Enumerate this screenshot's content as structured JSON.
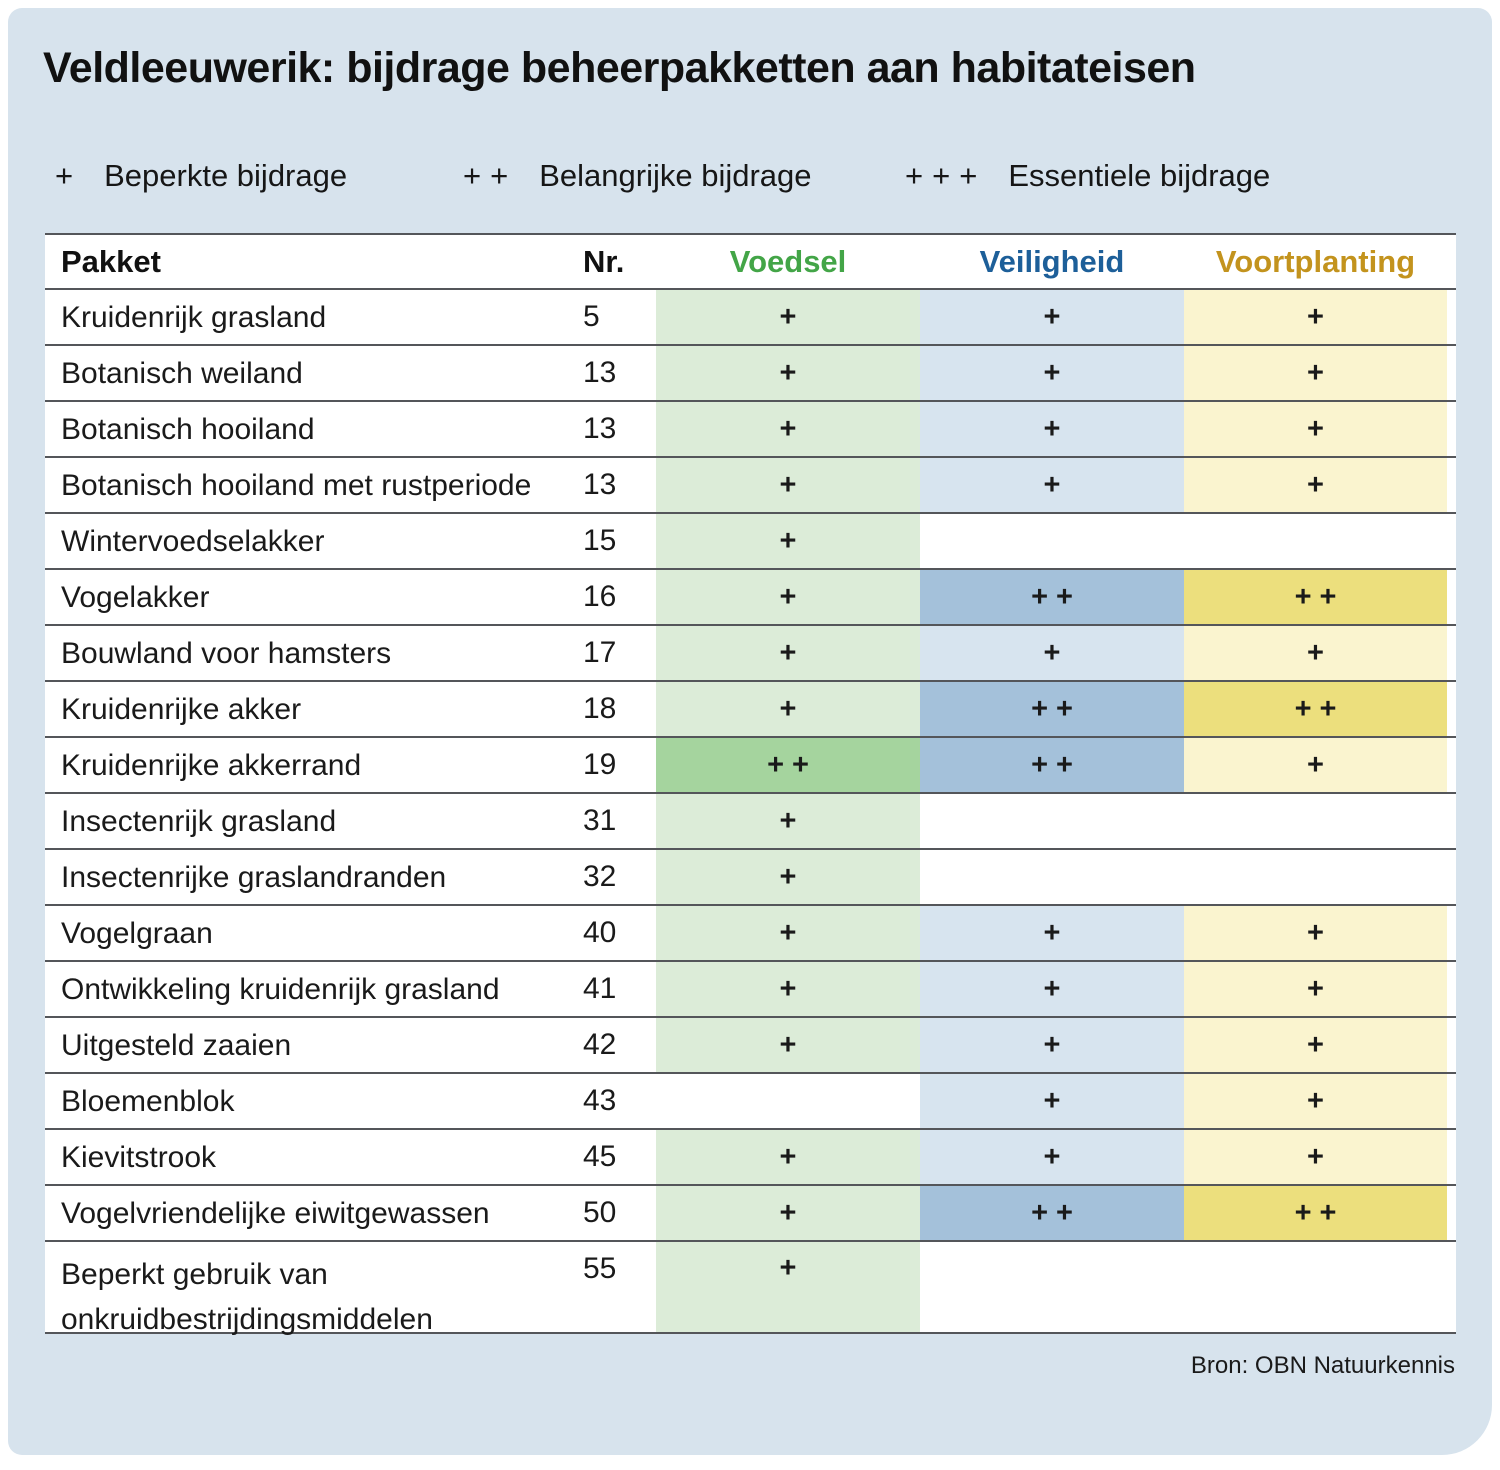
{
  "title": "Veldleeuwerik: bijdrage beheerpakketten aan habitateisen",
  "legend": {
    "items": [
      {
        "marks": "+",
        "label": "Beperkte bijdrage"
      },
      {
        "marks": "++",
        "label": "Belangrijke bijdrage"
      },
      {
        "marks": "+++",
        "label": "Essentiele bijdrage"
      }
    ]
  },
  "chart_data": {
    "type": "table",
    "title": "Veldleeuwerik: bijdrage beheerpakketten aan habitateisen",
    "value_key": {
      "plus": "Beperkte bijdrage",
      "plusplus": "Belangrijke bijdrage",
      "plusplusplus": "Essentiele bijdrage"
    },
    "columns": [
      {
        "key": "pakket",
        "label": "Pakket"
      },
      {
        "key": "nr",
        "label": "Nr."
      },
      {
        "key": "voedsel",
        "label": "Voedsel"
      },
      {
        "key": "veiligheid",
        "label": "Veiligheid"
      },
      {
        "key": "voortplanting",
        "label": "Voortplanting"
      }
    ],
    "rows": [
      {
        "pakket": "Kruidenrijk grasland",
        "nr": "5",
        "voedsel": "+",
        "veiligheid": "+",
        "voortplanting": "+"
      },
      {
        "pakket": "Botanisch weiland",
        "nr": "13",
        "voedsel": "+",
        "veiligheid": "+",
        "voortplanting": "+"
      },
      {
        "pakket": "Botanisch hooiland",
        "nr": "13",
        "voedsel": "+",
        "veiligheid": "+",
        "voortplanting": "+"
      },
      {
        "pakket": "Botanisch hooiland met rustperiode",
        "nr": "13",
        "voedsel": "+",
        "veiligheid": "+",
        "voortplanting": "+"
      },
      {
        "pakket": "Wintervoedselakker",
        "nr": "15",
        "voedsel": "+",
        "veiligheid": "",
        "voortplanting": ""
      },
      {
        "pakket": "Vogelakker",
        "nr": "16",
        "voedsel": "+",
        "veiligheid": "++",
        "voortplanting": "++"
      },
      {
        "pakket": "Bouwland voor hamsters",
        "nr": "17",
        "voedsel": "+",
        "veiligheid": "+",
        "voortplanting": "+"
      },
      {
        "pakket": "Kruidenrijke akker",
        "nr": "18",
        "voedsel": "+",
        "veiligheid": "++",
        "voortplanting": "++"
      },
      {
        "pakket": "Kruidenrijke akkerrand",
        "nr": "19",
        "voedsel": "++",
        "veiligheid": "++",
        "voortplanting": "+"
      },
      {
        "pakket": "Insectenrijk grasland",
        "nr": "31",
        "voedsel": "+",
        "veiligheid": "",
        "voortplanting": ""
      },
      {
        "pakket": "Insectenrijke graslandranden",
        "nr": "32",
        "voedsel": "+",
        "veiligheid": "",
        "voortplanting": ""
      },
      {
        "pakket": "Vogelgraan",
        "nr": "40",
        "voedsel": "+",
        "veiligheid": "+",
        "voortplanting": "+"
      },
      {
        "pakket": "Ontwikkeling kruidenrijk grasland",
        "nr": "41",
        "voedsel": "+",
        "veiligheid": "+",
        "voortplanting": "+"
      },
      {
        "pakket": "Uitgesteld zaaien",
        "nr": "42",
        "voedsel": "+",
        "veiligheid": "+",
        "voortplanting": "+"
      },
      {
        "pakket": "Bloemenblok",
        "nr": "43",
        "voedsel": "",
        "veiligheid": "+",
        "voortplanting": "+"
      },
      {
        "pakket": "Kievitstrook",
        "nr": "45",
        "voedsel": "+",
        "veiligheid": "+",
        "voortplanting": "+"
      },
      {
        "pakket": "Vogelvriendelijke eiwitgewassen",
        "nr": "50",
        "voedsel": "+",
        "veiligheid": "++",
        "voortplanting": "++"
      },
      {
        "pakket": "Beperkt gebruik van onkruidbestrijdingsmiddelen",
        "nr": "55",
        "voedsel": "+",
        "veiligheid": "",
        "voortplanting": ""
      }
    ]
  },
  "source": "Bron: OBN Natuurkennis",
  "colors": {
    "panel_bg": "#d7e3ed",
    "line": "#54565a",
    "voedsel_header": "#43a547",
    "veiligheid_header": "#1d5f99",
    "voortplanting_header": "#c3931d",
    "voedsel_light": "#dcecd8",
    "voedsel_dark": "#a5d49e",
    "veiligheid_light": "#d7e4ef",
    "veiligheid_dark": "#a4c1da",
    "voortplanting_light": "#faf4cf",
    "voortplanting_dark": "#ecdf7d"
  }
}
